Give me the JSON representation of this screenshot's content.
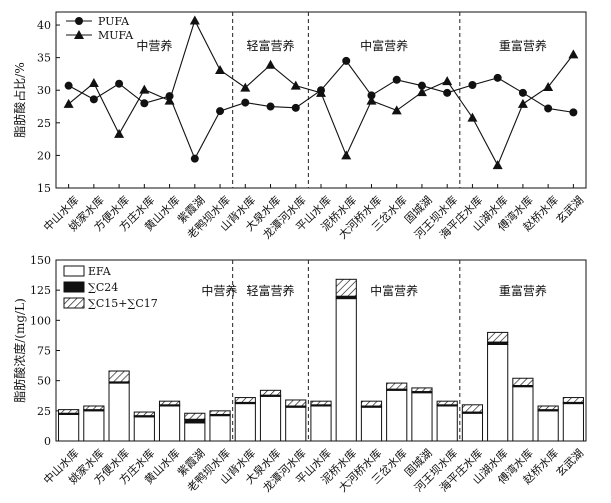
{
  "chart_data": [
    {
      "type": "line",
      "ylabel": "脂肪酸占比/%",
      "ylim": [
        15,
        42
      ],
      "yticks": [
        15,
        20,
        25,
        30,
        35,
        40
      ],
      "categories": [
        "中山水库",
        "姚家水库",
        "方便水库",
        "方庄水库",
        "黄山水库",
        "紫霞湖",
        "老鸭坝水库",
        "山背水库",
        "大泉水库",
        "龙潭河水库",
        "平山水库",
        "泥桥水库",
        "大河桥水库",
        "三岔水库",
        "固城湖",
        "河王坝水库",
        "海平庄水库",
        "山湖水库",
        "傅湾水库",
        "赵桥水库",
        "玄武湖"
      ],
      "series": [
        {
          "name": "PUFA",
          "marker": "circle",
          "values": [
            30.7,
            28.6,
            31.0,
            28.0,
            29.1,
            19.5,
            26.8,
            28.1,
            27.5,
            27.3,
            30.0,
            34.5,
            29.2,
            31.6,
            30.7,
            29.6,
            30.8,
            31.9,
            29.6,
            27.2,
            26.6
          ]
        },
        {
          "name": "MUFA",
          "marker": "triangle",
          "values": [
            27.9,
            31.1,
            23.3,
            30.1,
            28.4,
            40.7,
            33.1,
            30.4,
            33.9,
            30.7,
            29.6,
            20.0,
            28.4,
            26.9,
            29.7,
            31.4,
            25.8,
            18.5,
            27.9,
            30.5,
            35.5
          ]
        }
      ],
      "groups": [
        {
          "label": "中营养",
          "start": 0,
          "end": 6
        },
        {
          "label": "轻富营养",
          "start": 7,
          "end": 9
        },
        {
          "label": "中富营养",
          "start": 10,
          "end": 15
        },
        {
          "label": "重富营养",
          "start": 16,
          "end": 20
        }
      ],
      "legend": "top-left"
    },
    {
      "type": "bar",
      "stacked": true,
      "ylabel": "脂肪酸浓度/(mg/L)",
      "ylim": [
        0,
        150
      ],
      "yticks": [
        0,
        25,
        50,
        75,
        100,
        125,
        150
      ],
      "categories": [
        "中山水库",
        "姚家水库",
        "方便水库",
        "方庄水库",
        "黄山水库",
        "紫霞湖",
        "老鸭坝水库",
        "山背水库",
        "大泉水库",
        "龙潭河水库",
        "平山水库",
        "泥桥水库",
        "大河桥水库",
        "三岔水库",
        "固城湖",
        "河王坝水库",
        "海平庄水库",
        "山湖水库",
        "傅湾水库",
        "赵桥水库",
        "玄武湖"
      ],
      "series": [
        {
          "name": "EFA",
          "fill": "white",
          "values": [
            22,
            25,
            48,
            20,
            29,
            15,
            21,
            31,
            37,
            28,
            29,
            118,
            28,
            42,
            40,
            29,
            23,
            80,
            45,
            25,
            31
          ]
        },
        {
          "name": "∑C24",
          "fill": "black",
          "values": [
            1,
            1,
            1,
            1,
            1,
            3,
            1,
            1,
            1,
            1,
            1,
            2,
            1,
            1,
            1,
            1,
            1,
            2,
            1,
            1,
            1
          ]
        },
        {
          "name": "∑C15+∑C17",
          "fill": "hatch",
          "values": [
            3,
            3,
            9,
            3,
            3,
            5,
            3,
            4,
            4,
            5,
            3,
            14,
            4,
            5,
            3,
            3,
            6,
            8,
            6,
            3,
            4
          ]
        }
      ],
      "groups": [
        {
          "label": "中营养",
          "start": 0,
          "end": 6
        },
        {
          "label": "轻富营养",
          "start": 7,
          "end": 9
        },
        {
          "label": "中富营养",
          "start": 10,
          "end": 15
        },
        {
          "label": "重富营养",
          "start": 16,
          "end": 20
        }
      ],
      "legend": "top-left"
    }
  ]
}
